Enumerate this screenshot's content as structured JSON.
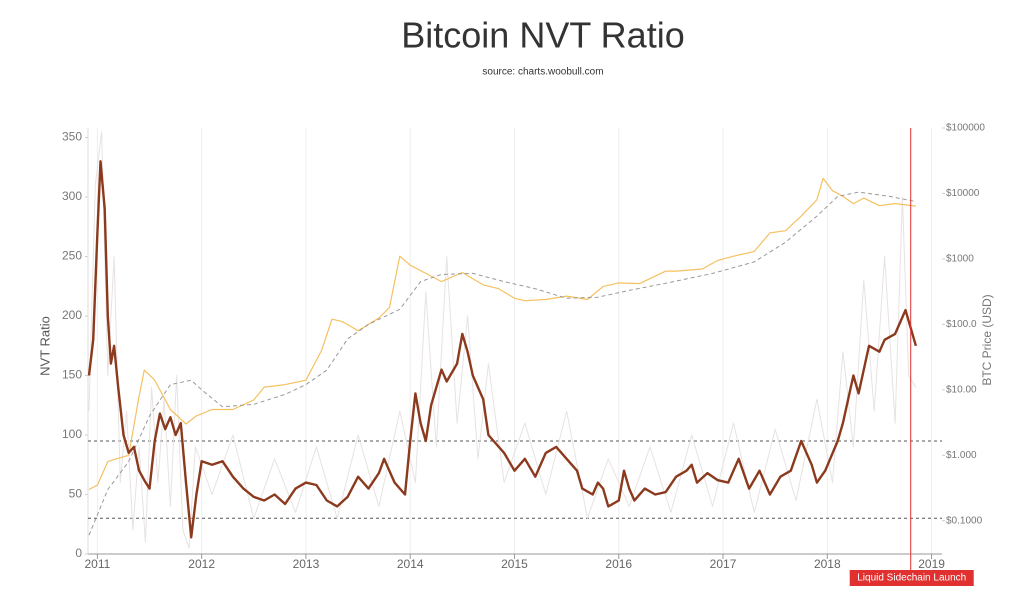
{
  "chart_data": {
    "type": "line",
    "title": "Bitcoin NVT Ratio",
    "subtitle": "source: charts.woobull.com",
    "y_label": "NVT Ratio",
    "y2_label": "BTC Price (USD)",
    "xlim": [
      2010.91,
      2019.1
    ],
    "xticks": [
      2011,
      2012,
      2013,
      2014,
      2015,
      2016,
      2017,
      2018,
      2019
    ],
    "ylim": [
      0,
      358
    ],
    "yticks": [
      0,
      50,
      100,
      150,
      200,
      250,
      300,
      350
    ],
    "y2lim": [
      0.031,
      100000
    ],
    "y2scale": "log",
    "y2ticks": [
      {
        "value": 0.1,
        "label": "$0.1000"
      },
      {
        "value": 1,
        "label": "$1.000"
      },
      {
        "value": 10,
        "label": "$10.00"
      },
      {
        "value": 100,
        "label": "$100.0"
      },
      {
        "value": 1000,
        "label": "$1000"
      },
      {
        "value": 10000,
        "label": "$10000"
      },
      {
        "value": 100000,
        "label": "$100000"
      }
    ],
    "grid": "x",
    "reference_lines": [
      95,
      30
    ],
    "annotation": {
      "x": 2018.8,
      "text": "Liquid Sidechain Launch",
      "color": "#e03030"
    },
    "series": [
      {
        "color": "#e8e2e2",
        "width": 1,
        "x": [
          2010.92,
          2010.98,
          2011.04,
          2011.1,
          2011.16,
          2011.22,
          2011.28,
          2011.34,
          2011.4,
          2011.46,
          2011.52,
          2011.58,
          2011.64,
          2011.7,
          2011.76,
          2011.82,
          2011.88,
          2011.94,
          2012.1,
          2012.3,
          2012.5,
          2012.7,
          2012.9,
          2013.1,
          2013.3,
          2013.5,
          2013.7,
          2013.9,
          2014.05,
          2014.15,
          2014.25,
          2014.35,
          2014.45,
          2014.55,
          2014.65,
          2014.75,
          2014.9,
          2015.1,
          2015.3,
          2015.5,
          2015.7,
          2015.9,
          2016.1,
          2016.3,
          2016.5,
          2016.7,
          2016.9,
          2017.1,
          2017.3,
          2017.5,
          2017.7,
          2017.9,
          2018.05,
          2018.15,
          2018.25,
          2018.35,
          2018.45,
          2018.55,
          2018.65,
          2018.72,
          2018.78,
          2018.85
        ],
        "values": [
          120,
          310,
          355,
          150,
          250,
          60,
          120,
          20,
          90,
          10,
          140,
          60,
          130,
          40,
          150,
          20,
          5,
          90,
          50,
          100,
          30,
          80,
          35,
          90,
          30,
          100,
          40,
          120,
          60,
          220,
          90,
          250,
          110,
          200,
          80,
          160,
          60,
          110,
          50,
          120,
          30,
          80,
          40,
          90,
          35,
          100,
          40,
          110,
          35,
          105,
          45,
          130,
          60,
          170,
          90,
          230,
          120,
          250,
          110,
          300,
          150,
          140
        ]
      },
      {
        "color": "#f5c060",
        "width": 1.2,
        "axis": "y2",
        "x": [
          2010.92,
          2011.0,
          2011.1,
          2011.2,
          2011.3,
          2011.4,
          2011.45,
          2011.55,
          2011.7,
          2011.85,
          2011.95,
          2012.1,
          2012.3,
          2012.5,
          2012.6,
          2012.8,
          2013.0,
          2013.15,
          2013.25,
          2013.35,
          2013.5,
          2013.7,
          2013.8,
          2013.9,
          2014.0,
          2014.15,
          2014.3,
          2014.5,
          2014.7,
          2014.85,
          2015.0,
          2015.1,
          2015.3,
          2015.5,
          2015.7,
          2015.85,
          2016.0,
          2016.2,
          2016.45,
          2016.55,
          2016.8,
          2016.95,
          2017.1,
          2017.3,
          2017.45,
          2017.6,
          2017.75,
          2017.9,
          2017.96,
          2018.05,
          2018.15,
          2018.25,
          2018.35,
          2018.5,
          2018.65,
          2018.85
        ],
        "values": [
          0.3,
          0.35,
          0.8,
          0.9,
          1.0,
          8,
          20,
          14,
          5,
          3,
          4,
          5,
          5,
          7,
          11,
          12,
          14,
          40,
          120,
          110,
          80,
          125,
          180,
          1100,
          800,
          600,
          450,
          620,
          400,
          350,
          250,
          230,
          240,
          270,
          240,
          380,
          430,
          420,
          650,
          650,
          700,
          950,
          1100,
          1300,
          2500,
          2700,
          4500,
          8000,
          17000,
          11000,
          9000,
          7000,
          8500,
          6500,
          7000,
          6400
        ]
      },
      {
        "color": "#999999",
        "width": 1,
        "dash": true,
        "axis": "y2",
        "x": [
          2010.92,
          2011.1,
          2011.3,
          2011.5,
          2011.7,
          2011.9,
          2012.0,
          2012.2,
          2012.5,
          2012.8,
          2013.0,
          2013.2,
          2013.4,
          2013.6,
          2013.9,
          2014.1,
          2014.3,
          2014.6,
          2014.9,
          2015.2,
          2015.5,
          2015.8,
          2016.1,
          2016.5,
          2016.9,
          2017.3,
          2017.6,
          2017.9,
          2018.1,
          2018.3,
          2018.6,
          2018.85
        ],
        "values": [
          0.06,
          0.3,
          0.8,
          4,
          12,
          14,
          10,
          5.5,
          6,
          8.5,
          12,
          20,
          60,
          100,
          170,
          450,
          580,
          600,
          450,
          350,
          250,
          260,
          330,
          440,
          600,
          900,
          1800,
          4500,
          9000,
          10500,
          9000,
          7500
        ]
      },
      {
        "color": "#8b3a1e",
        "width": 2.4,
        "x": [
          2010.92,
          2010.96,
          2011.0,
          2011.03,
          2011.07,
          2011.1,
          2011.13,
          2011.16,
          2011.2,
          2011.25,
          2011.3,
          2011.35,
          2011.4,
          2011.45,
          2011.5,
          2011.55,
          2011.6,
          2011.65,
          2011.7,
          2011.75,
          2011.8,
          2011.85,
          2011.9,
          2011.95,
          2012.0,
          2012.1,
          2012.2,
          2012.3,
          2012.4,
          2012.5,
          2012.6,
          2012.7,
          2012.8,
          2012.9,
          2013.0,
          2013.1,
          2013.2,
          2013.3,
          2013.4,
          2013.5,
          2013.6,
          2013.7,
          2013.75,
          2013.85,
          2013.95,
          2014.0,
          2014.05,
          2014.1,
          2014.15,
          2014.2,
          2014.3,
          2014.35,
          2014.45,
          2014.5,
          2014.55,
          2014.6,
          2014.65,
          2014.7,
          2014.75,
          2014.8,
          2014.9,
          2015.0,
          2015.1,
          2015.2,
          2015.3,
          2015.4,
          2015.5,
          2015.6,
          2015.65,
          2015.75,
          2015.8,
          2015.85,
          2015.9,
          2016.0,
          2016.05,
          2016.1,
          2016.15,
          2016.25,
          2016.35,
          2016.45,
          2016.55,
          2016.65,
          2016.7,
          2016.75,
          2016.85,
          2016.95,
          2017.05,
          2017.15,
          2017.25,
          2017.35,
          2017.45,
          2017.55,
          2017.65,
          2017.75,
          2017.85,
          2017.9,
          2017.98,
          2018.1,
          2018.15,
          2018.25,
          2018.3,
          2018.4,
          2018.5,
          2018.55,
          2018.65,
          2018.7,
          2018.75,
          2018.8,
          2018.85
        ],
        "values": [
          150,
          180,
          270,
          330,
          290,
          200,
          160,
          175,
          140,
          100,
          85,
          90,
          70,
          62,
          55,
          95,
          118,
          105,
          115,
          100,
          110,
          60,
          14,
          50,
          78,
          75,
          78,
          65,
          55,
          48,
          45,
          50,
          42,
          55,
          60,
          58,
          45,
          40,
          48,
          65,
          55,
          68,
          80,
          60,
          50,
          95,
          135,
          110,
          95,
          125,
          155,
          145,
          160,
          185,
          170,
          150,
          140,
          130,
          100,
          95,
          85,
          70,
          80,
          65,
          85,
          90,
          80,
          70,
          55,
          50,
          60,
          55,
          40,
          45,
          70,
          55,
          45,
          55,
          50,
          52,
          65,
          70,
          75,
          60,
          68,
          62,
          60,
          80,
          55,
          70,
          50,
          65,
          70,
          95,
          75,
          60,
          70,
          95,
          110,
          150,
          135,
          175,
          170,
          180,
          185,
          195,
          205,
          190,
          175
        ]
      }
    ]
  }
}
